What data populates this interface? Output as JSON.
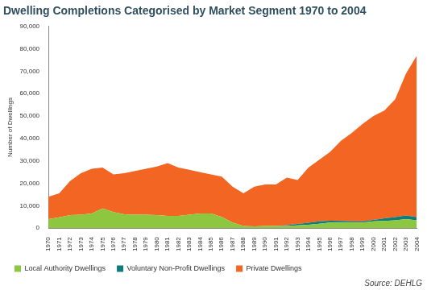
{
  "chart_data": {
    "type": "area",
    "title": "Dwelling Completions Categorised by Market Segment 1970 to 2004",
    "y_label": "Number of Dwellings",
    "annotations": [
      "Source: DEHLG"
    ],
    "categories": [
      "1970",
      "1971",
      "1972",
      "1973",
      "1974",
      "1975",
      "1976",
      "1977",
      "1978",
      "1979",
      "1980",
      "1981",
      "1982",
      "1983",
      "1984",
      "1985",
      "1986",
      "1987",
      "1988",
      "1989",
      "1990",
      "1991",
      "1992",
      "1993",
      "1994",
      "1995",
      "1996",
      "1997",
      "1998",
      "1999",
      "2000",
      "2001",
      "2002",
      "2003",
      "2004"
    ],
    "series": [
      {
        "name": "Local Authority Dwellings",
        "color": "#8dc63f",
        "values": [
          4000,
          4800,
          5800,
          6000,
          6500,
          8800,
          7200,
          6200,
          6000,
          6000,
          5800,
          5500,
          5500,
          6000,
          6500,
          6500,
          5000,
          2500,
          1000,
          800,
          1000,
          1000,
          1000,
          1200,
          1500,
          2000,
          2500,
          2500,
          2500,
          2500,
          3000,
          3200,
          3500,
          4000,
          3500
        ]
      },
      {
        "name": "Voluntary Non-Profit Dwellings",
        "color": "#0e7c7b",
        "values": [
          0,
          0,
          0,
          0,
          0,
          0,
          0,
          0,
          0,
          0,
          0,
          0,
          0,
          0,
          0,
          0,
          0,
          0,
          0,
          0,
          0,
          0,
          300,
          700,
          900,
          1000,
          800,
          700,
          500,
          500,
          700,
          1200,
          1400,
          1600,
          1400
        ]
      },
      {
        "name": "Private Dwellings",
        "color": "#f26522",
        "values": [
          10000,
          10700,
          15200,
          18500,
          20000,
          18200,
          16800,
          18300,
          19500,
          20500,
          21700,
          23500,
          21500,
          20000,
          18500,
          17500,
          18000,
          16000,
          14500,
          17700,
          18500,
          18500,
          21200,
          19600,
          24600,
          27500,
          30700,
          35800,
          39500,
          43500,
          46300,
          48100,
          52600,
          63400,
          72100
        ]
      }
    ],
    "stacked": true,
    "ylim": [
      0,
      90000
    ],
    "yticks": [
      0,
      {
        "value": 10000,
        "label": "10,000"
      },
      {
        "value": 20000,
        "label": "20,000"
      },
      {
        "value": 30000,
        "label": "30,000"
      },
      {
        "value": 40000,
        "label": "40,000"
      },
      {
        "value": 50000,
        "label": "50,000"
      },
      {
        "value": 60000,
        "label": "60,000"
      },
      {
        "value": 70000,
        "label": "70,000"
      },
      {
        "value": 80000,
        "label": "80,000"
      },
      {
        "value": 90000,
        "label": "90,000"
      }
    ],
    "grid": false,
    "legend": "bottom"
  }
}
